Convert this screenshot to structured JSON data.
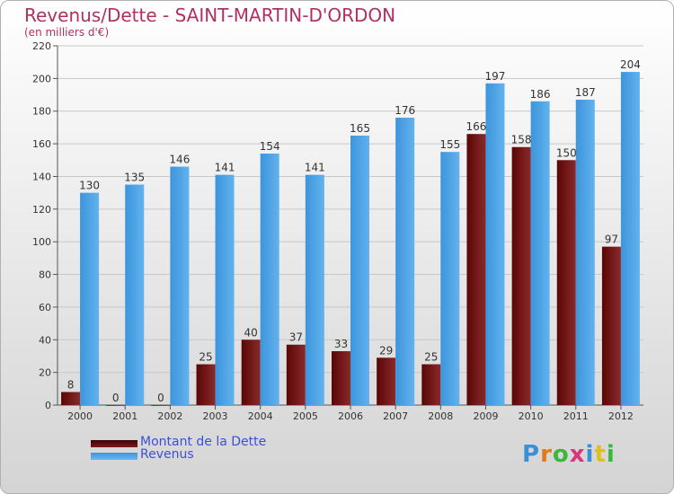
{
  "title": "Revenus/Dette - SAINT-MARTIN-D'ORDON",
  "subtitle": "(en milliers d'€)",
  "logo_text": "Proxiti",
  "colors": {
    "dette": "#6b0a0a",
    "revenus": "#4ea3e6",
    "title": "#b03060",
    "legend_text": "#3b4fd8"
  },
  "chart_data": {
    "type": "bar",
    "title": "Revenus/Dette - SAINT-MARTIN-D'ORDON",
    "subtitle": "(en milliers d'€)",
    "categories": [
      "2000",
      "2001",
      "2002",
      "2003",
      "2004",
      "2005",
      "2006",
      "2007",
      "2008",
      "2009",
      "2010",
      "2011",
      "2012"
    ],
    "series": [
      {
        "name": "Montant de la Dette",
        "color": "#6b0a0a",
        "values": [
          8,
          0,
          0,
          25,
          40,
          37,
          33,
          29,
          25,
          166,
          158,
          150,
          97
        ]
      },
      {
        "name": "Revenus",
        "color": "#4ea3e6",
        "values": [
          130,
          135,
          146,
          141,
          154,
          141,
          165,
          176,
          155,
          197,
          186,
          187,
          204
        ]
      }
    ],
    "ylim": [
      0,
      220
    ],
    "yticks": [
      0,
      20,
      40,
      60,
      80,
      100,
      120,
      140,
      160,
      180,
      200,
      220
    ],
    "grid": true,
    "legend_position": "bottom-left"
  }
}
